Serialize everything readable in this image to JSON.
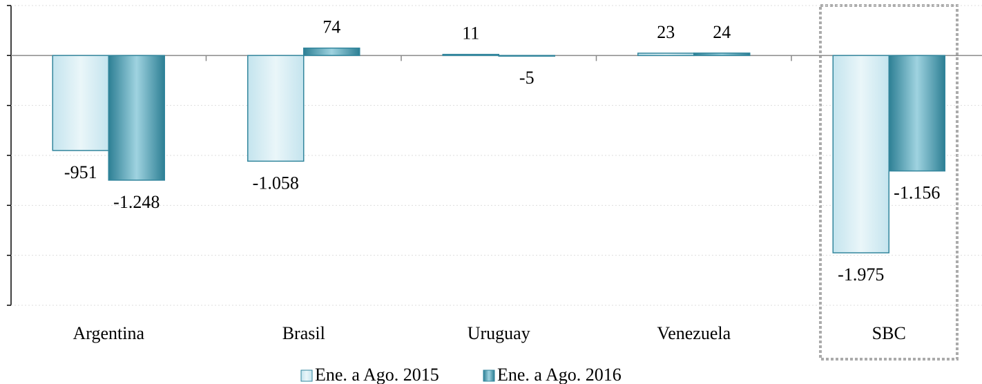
{
  "chart_data": {
    "type": "bar",
    "categories": [
      "Argentina",
      "Brasil",
      "Uruguay",
      "Venezuela",
      "SBC"
    ],
    "series": [
      {
        "name": "Ene. a Ago. 2015",
        "color": "#daeef3",
        "values": [
          -951,
          -1058,
          11,
          23,
          -1975
        ],
        "value_labels": [
          "-951",
          "-1.058",
          "11",
          "23",
          "-1.975"
        ]
      },
      {
        "name": "Ene. a Ago. 2016",
        "color": "#4ba5bc",
        "values": [
          -1248,
          74,
          -5,
          24,
          -1156
        ],
        "value_labels": [
          "-1.248",
          "74",
          "-5",
          "24",
          "-1.156"
        ]
      }
    ],
    "ylim": [
      -2500,
      500
    ],
    "yticks": [
      -2500,
      -2000,
      -1500,
      -1000,
      -500,
      0,
      500
    ],
    "grid": true
  }
}
